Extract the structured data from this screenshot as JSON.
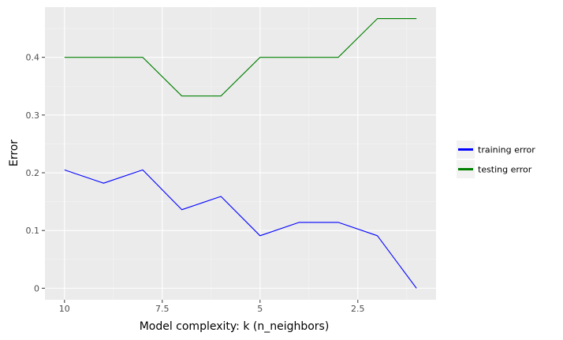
{
  "chart_data": {
    "type": "line",
    "xlabel": "Model complexity: k (n_neighbors)",
    "ylabel": "Error",
    "x_reversed": true,
    "xlim": [
      0.5,
      10.5
    ],
    "ylim": [
      -0.02,
      0.487
    ],
    "x_ticks": [
      {
        "value": 10,
        "label": "10"
      },
      {
        "value": 7.5,
        "label": "7.5"
      },
      {
        "value": 5,
        "label": "5"
      },
      {
        "value": 2.5,
        "label": "2.5"
      }
    ],
    "x_minor_ticks": [
      8.75,
      6.25,
      3.75,
      1.25
    ],
    "y_ticks": [
      {
        "value": 0,
        "label": "0"
      },
      {
        "value": 0.1,
        "label": "0.1"
      },
      {
        "value": 0.2,
        "label": "0.2"
      },
      {
        "value": 0.3,
        "label": "0.3"
      },
      {
        "value": 0.4,
        "label": "0.4"
      }
    ],
    "y_minor_ticks": [
      0.05,
      0.15,
      0.25,
      0.35,
      0.45
    ],
    "grid": true,
    "legend_position": "right",
    "x": [
      10,
      9,
      8,
      7,
      6,
      5,
      4,
      3,
      2,
      1
    ],
    "series": [
      {
        "name": "training error",
        "color": "#0000ff",
        "values": [
          0.205,
          0.182,
          0.205,
          0.136,
          0.159,
          0.091,
          0.114,
          0.114,
          0.091,
          0.0
        ]
      },
      {
        "name": "testing error",
        "color": "#008000",
        "values": [
          0.4,
          0.4,
          0.4,
          0.333,
          0.333,
          0.4,
          0.4,
          0.4,
          0.467,
          0.467
        ]
      }
    ]
  }
}
